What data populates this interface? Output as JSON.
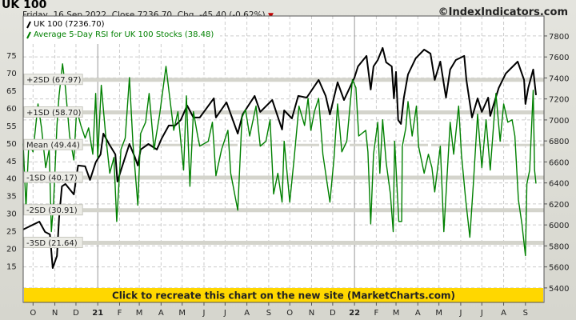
{
  "header": {
    "title": "UK 100",
    "subtitle": "Friday, 16 Sep 2022, Close 7236.70, Chg. -45.40 (-0.62%)",
    "change_direction_icon": "down-triangle-icon",
    "site": "©IndexIndicators.com"
  },
  "banner": {
    "text": "Click to recreate this chart on the new site (MarketCharts.com)",
    "color": "#ffd700"
  },
  "chart_data": {
    "type": "line",
    "legend": [
      {
        "label": "UK 100 (7236.70)",
        "color": "#000000"
      },
      {
        "label": "Average 5-Day RSI for UK 100 Stocks (38.48)",
        "color": "#008000"
      }
    ],
    "legend_position": "top-left",
    "grid": true,
    "xlim": [
      "2020-09-17",
      "2022-09-16"
    ],
    "x_ticks": [
      {
        "label": "O",
        "date": "2020-10-01"
      },
      {
        "label": "N",
        "date": "2020-11-01"
      },
      {
        "label": "D",
        "date": "2020-12-01"
      },
      {
        "label": "21",
        "date": "2021-01-01",
        "year": true
      },
      {
        "label": "F",
        "date": "2021-02-01"
      },
      {
        "label": "M",
        "date": "2021-03-01"
      },
      {
        "label": "A",
        "date": "2021-04-01"
      },
      {
        "label": "M",
        "date": "2021-05-01"
      },
      {
        "label": "J",
        "date": "2021-06-01"
      },
      {
        "label": "J",
        "date": "2021-07-01"
      },
      {
        "label": "A",
        "date": "2021-08-01"
      },
      {
        "label": "S",
        "date": "2021-09-01"
      },
      {
        "label": "O",
        "date": "2021-10-01"
      },
      {
        "label": "N",
        "date": "2021-11-01"
      },
      {
        "label": "D",
        "date": "2021-12-01"
      },
      {
        "label": "22",
        "date": "2022-01-01",
        "year": true
      },
      {
        "label": "F",
        "date": "2022-02-01"
      },
      {
        "label": "M",
        "date": "2022-03-01"
      },
      {
        "label": "A",
        "date": "2022-04-01"
      },
      {
        "label": "M",
        "date": "2022-05-01"
      },
      {
        "label": "J",
        "date": "2022-06-01"
      },
      {
        "label": "J",
        "date": "2022-07-01"
      },
      {
        "label": "A",
        "date": "2022-08-01"
      },
      {
        "label": "S",
        "date": "2022-09-01"
      }
    ],
    "y_right": {
      "ticks": [
        5400,
        5600,
        5800,
        6000,
        6200,
        6400,
        6600,
        6800,
        7000,
        7200,
        7400,
        7600,
        7800
      ],
      "range": [
        5262,
        7990
      ]
    },
    "y_left": {
      "ticks": [
        15,
        20,
        25,
        30,
        35,
        40,
        45,
        50,
        55,
        60,
        65,
        70,
        75
      ],
      "range": [
        4.7,
        86.1
      ]
    },
    "bands": [
      {
        "label": "+2SD (67.97)",
        "value": 67.97
      },
      {
        "label": "+1SD (58.70)",
        "value": 58.7
      },
      {
        "label": "Mean (49.44)",
        "value": 49.44,
        "dashed": true
      },
      {
        "label": "-1SD (40.17)",
        "value": 40.17
      },
      {
        "label": "-2SD (30.91)",
        "value": 30.91
      },
      {
        "label": "-3SD (21.64)",
        "value": 21.64
      }
    ],
    "series": [
      {
        "name": "UK 100",
        "axis": "right",
        "color": "#000000",
        "points": [
          [
            "2020-09-17",
            5956
          ],
          [
            "2020-10-10",
            6032
          ],
          [
            "2020-10-18",
            5933
          ],
          [
            "2020-10-25",
            5910
          ],
          [
            "2020-10-29",
            5590
          ],
          [
            "2020-11-04",
            5705
          ],
          [
            "2020-11-07",
            6063
          ],
          [
            "2020-11-11",
            6368
          ],
          [
            "2020-11-16",
            6390
          ],
          [
            "2020-11-28",
            6291
          ],
          [
            "2020-12-04",
            6566
          ],
          [
            "2020-12-14",
            6558
          ],
          [
            "2020-12-21",
            6429
          ],
          [
            "2020-12-29",
            6596
          ],
          [
            "2021-01-05",
            6672
          ],
          [
            "2021-01-09",
            6870
          ],
          [
            "2021-01-17",
            6771
          ],
          [
            "2021-01-26",
            6672
          ],
          [
            "2021-01-29",
            6413
          ],
          [
            "2021-02-04",
            6543
          ],
          [
            "2021-02-15",
            6771
          ],
          [
            "2021-02-23",
            6642
          ],
          [
            "2021-02-27",
            6566
          ],
          [
            "2021-03-03",
            6718
          ],
          [
            "2021-03-14",
            6771
          ],
          [
            "2021-03-26",
            6718
          ],
          [
            "2021-04-02",
            6825
          ],
          [
            "2021-04-12",
            6947
          ],
          [
            "2021-04-21",
            6947
          ],
          [
            "2021-04-29",
            7000
          ],
          [
            "2021-05-08",
            7137
          ],
          [
            "2021-05-17",
            7023
          ],
          [
            "2021-05-26",
            7023
          ],
          [
            "2021-06-15",
            7206
          ],
          [
            "2021-06-18",
            7023
          ],
          [
            "2021-07-03",
            7168
          ],
          [
            "2021-07-19",
            6870
          ],
          [
            "2021-07-26",
            7053
          ],
          [
            "2021-08-12",
            7229
          ],
          [
            "2021-08-20",
            7076
          ],
          [
            "2021-09-06",
            7190
          ],
          [
            "2021-09-20",
            6909
          ],
          [
            "2021-09-23",
            7091
          ],
          [
            "2021-10-04",
            7015
          ],
          [
            "2021-10-13",
            7229
          ],
          [
            "2021-10-25",
            7213
          ],
          [
            "2021-11-11",
            7381
          ],
          [
            "2021-11-21",
            7229
          ],
          [
            "2021-11-27",
            7053
          ],
          [
            "2021-12-08",
            7358
          ],
          [
            "2021-12-17",
            7190
          ],
          [
            "2022-01-01",
            7404
          ],
          [
            "2022-01-06",
            7510
          ],
          [
            "2022-01-18",
            7610
          ],
          [
            "2022-01-24",
            7290
          ],
          [
            "2022-01-28",
            7510
          ],
          [
            "2022-02-03",
            7571
          ],
          [
            "2022-02-10",
            7686
          ],
          [
            "2022-02-15",
            7549
          ],
          [
            "2022-02-23",
            7510
          ],
          [
            "2022-02-26",
            7206
          ],
          [
            "2022-03-01",
            7457
          ],
          [
            "2022-03-04",
            7000
          ],
          [
            "2022-03-08",
            6962
          ],
          [
            "2022-03-12",
            7206
          ],
          [
            "2022-03-18",
            7434
          ],
          [
            "2022-03-29",
            7587
          ],
          [
            "2022-04-10",
            7670
          ],
          [
            "2022-04-19",
            7632
          ],
          [
            "2022-04-25",
            7381
          ],
          [
            "2022-05-03",
            7556
          ],
          [
            "2022-05-11",
            7213
          ],
          [
            "2022-05-17",
            7480
          ],
          [
            "2022-05-25",
            7571
          ],
          [
            "2022-06-06",
            7610
          ],
          [
            "2022-06-09",
            7381
          ],
          [
            "2022-06-17",
            7023
          ],
          [
            "2022-06-25",
            7206
          ],
          [
            "2022-07-01",
            7076
          ],
          [
            "2022-07-10",
            7213
          ],
          [
            "2022-07-13",
            7038
          ],
          [
            "2022-07-25",
            7305
          ],
          [
            "2022-08-04",
            7442
          ],
          [
            "2022-08-21",
            7556
          ],
          [
            "2022-08-30",
            7381
          ],
          [
            "2022-09-01",
            7152
          ],
          [
            "2022-09-05",
            7305
          ],
          [
            "2022-09-12",
            7480
          ],
          [
            "2022-09-16",
            7236.7
          ]
        ]
      },
      {
        "name": "Average 5-Day RSI for UK 100 Stocks",
        "axis": "left",
        "color": "#008000",
        "points": [
          [
            "2020-09-17",
            49.8
          ],
          [
            "2020-09-21",
            31.6
          ],
          [
            "2020-09-25",
            49.8
          ],
          [
            "2020-10-01",
            47.5
          ],
          [
            "2020-10-08",
            61.1
          ],
          [
            "2020-10-13",
            54.3
          ],
          [
            "2020-10-19",
            43.0
          ],
          [
            "2020-10-24",
            48.2
          ],
          [
            "2020-10-27",
            24.8
          ],
          [
            "2020-10-30",
            32.3
          ],
          [
            "2020-11-04",
            55.0
          ],
          [
            "2020-11-07",
            63.4
          ],
          [
            "2020-11-12",
            72.5
          ],
          [
            "2020-11-16",
            65.7
          ],
          [
            "2020-11-22",
            52.0
          ],
          [
            "2020-11-28",
            45.2
          ],
          [
            "2020-12-02",
            59.5
          ],
          [
            "2020-12-08",
            55.0
          ],
          [
            "2020-12-14",
            51.4
          ],
          [
            "2020-12-19",
            54.3
          ],
          [
            "2020-12-25",
            46.8
          ],
          [
            "2020-12-29",
            64.1
          ],
          [
            "2021-01-01",
            45.9
          ],
          [
            "2021-01-06",
            66.4
          ],
          [
            "2021-01-12",
            52.7
          ],
          [
            "2021-01-18",
            41.4
          ],
          [
            "2021-01-24",
            45.9
          ],
          [
            "2021-01-28",
            27.7
          ],
          [
            "2021-02-03",
            48.2
          ],
          [
            "2021-02-09",
            51.4
          ],
          [
            "2021-02-15",
            68.6
          ],
          [
            "2021-02-20",
            49.8
          ],
          [
            "2021-02-27",
            32.3
          ],
          [
            "2021-03-03",
            52.7
          ],
          [
            "2021-03-10",
            55.9
          ],
          [
            "2021-03-15",
            64.1
          ],
          [
            "2021-03-22",
            48.2
          ],
          [
            "2021-03-30",
            58.2
          ],
          [
            "2021-04-08",
            71.8
          ],
          [
            "2021-04-13",
            63.4
          ],
          [
            "2021-04-19",
            53.6
          ],
          [
            "2021-04-25",
            58.9
          ],
          [
            "2021-05-03",
            42.3
          ],
          [
            "2021-05-07",
            63.4
          ],
          [
            "2021-05-12",
            37.7
          ],
          [
            "2021-05-17",
            58.9
          ],
          [
            "2021-05-23",
            52.0
          ],
          [
            "2021-05-26",
            49.1
          ],
          [
            "2021-06-07",
            50.5
          ],
          [
            "2021-06-13",
            55.9
          ],
          [
            "2021-06-18",
            40.7
          ],
          [
            "2021-06-26",
            48.2
          ],
          [
            "2021-07-05",
            53.6
          ],
          [
            "2021-07-09",
            41.4
          ],
          [
            "2021-07-19",
            30.9
          ],
          [
            "2021-07-25",
            57.3
          ],
          [
            "2021-07-30",
            59.5
          ],
          [
            "2021-08-05",
            52.0
          ],
          [
            "2021-08-14",
            60.5
          ],
          [
            "2021-08-20",
            49.1
          ],
          [
            "2021-08-28",
            50.5
          ],
          [
            "2021-09-03",
            56.6
          ],
          [
            "2021-09-08",
            35.5
          ],
          [
            "2021-09-14",
            41.4
          ],
          [
            "2021-09-20",
            33.2
          ],
          [
            "2021-09-23",
            50.5
          ],
          [
            "2021-10-01",
            33.2
          ],
          [
            "2021-10-07",
            45.2
          ],
          [
            "2021-10-14",
            60.5
          ],
          [
            "2021-10-22",
            55.0
          ],
          [
            "2021-10-27",
            62.7
          ],
          [
            "2021-10-31",
            53.6
          ],
          [
            "2021-11-05",
            58.9
          ],
          [
            "2021-11-11",
            62.7
          ],
          [
            "2021-11-17",
            46.8
          ],
          [
            "2021-11-27",
            33.2
          ],
          [
            "2021-12-03",
            45.9
          ],
          [
            "2021-12-08",
            61.1
          ],
          [
            "2021-12-14",
            47.5
          ],
          [
            "2021-12-21",
            50.5
          ],
          [
            "2021-12-29",
            68.0
          ],
          [
            "2022-01-03",
            65.7
          ],
          [
            "2022-01-07",
            52.0
          ],
          [
            "2022-01-17",
            53.6
          ],
          [
            "2022-01-20",
            47.5
          ],
          [
            "2022-01-24",
            27.0
          ],
          [
            "2022-01-28",
            46.8
          ],
          [
            "2022-02-03",
            55.9
          ],
          [
            "2022-02-06",
            41.4
          ],
          [
            "2022-02-10",
            56.6
          ],
          [
            "2022-02-15",
            44.5
          ],
          [
            "2022-02-21",
            35.5
          ],
          [
            "2022-02-25",
            24.8
          ],
          [
            "2022-02-27",
            50.5
          ],
          [
            "2022-03-05",
            27.7
          ],
          [
            "2022-03-09",
            27.7
          ],
          [
            "2022-03-10",
            49.1
          ],
          [
            "2022-03-15",
            54.3
          ],
          [
            "2022-03-18",
            61.8
          ],
          [
            "2022-03-24",
            52.0
          ],
          [
            "2022-03-30",
            60.5
          ],
          [
            "2022-04-02",
            49.1
          ],
          [
            "2022-04-10",
            41.4
          ],
          [
            "2022-04-16",
            46.8
          ],
          [
            "2022-04-21",
            43.0
          ],
          [
            "2022-04-25",
            36.1
          ],
          [
            "2022-05-03",
            49.1
          ],
          [
            "2022-05-08",
            24.8
          ],
          [
            "2022-05-12",
            38.4
          ],
          [
            "2022-05-17",
            55.9
          ],
          [
            "2022-05-22",
            46.8
          ],
          [
            "2022-05-29",
            60.5
          ],
          [
            "2022-06-02",
            46.8
          ],
          [
            "2022-06-08",
            33.9
          ],
          [
            "2022-06-14",
            23.2
          ],
          [
            "2022-06-19",
            38.4
          ],
          [
            "2022-06-25",
            58.2
          ],
          [
            "2022-07-01",
            43.0
          ],
          [
            "2022-07-07",
            56.6
          ],
          [
            "2022-07-13",
            42.3
          ],
          [
            "2022-07-21",
            64.1
          ],
          [
            "2022-07-27",
            50.5
          ],
          [
            "2022-08-01",
            61.1
          ],
          [
            "2022-08-07",
            55.9
          ],
          [
            "2022-08-13",
            56.6
          ],
          [
            "2022-08-17",
            52.0
          ],
          [
            "2022-08-22",
            33.9
          ],
          [
            "2022-08-27",
            27.0
          ],
          [
            "2022-09-01",
            18.0
          ],
          [
            "2022-09-03",
            38.4
          ],
          [
            "2022-09-07",
            42.3
          ],
          [
            "2022-09-12",
            65.0
          ],
          [
            "2022-09-14",
            42.3
          ],
          [
            "2022-09-16",
            38.48
          ]
        ]
      }
    ]
  }
}
